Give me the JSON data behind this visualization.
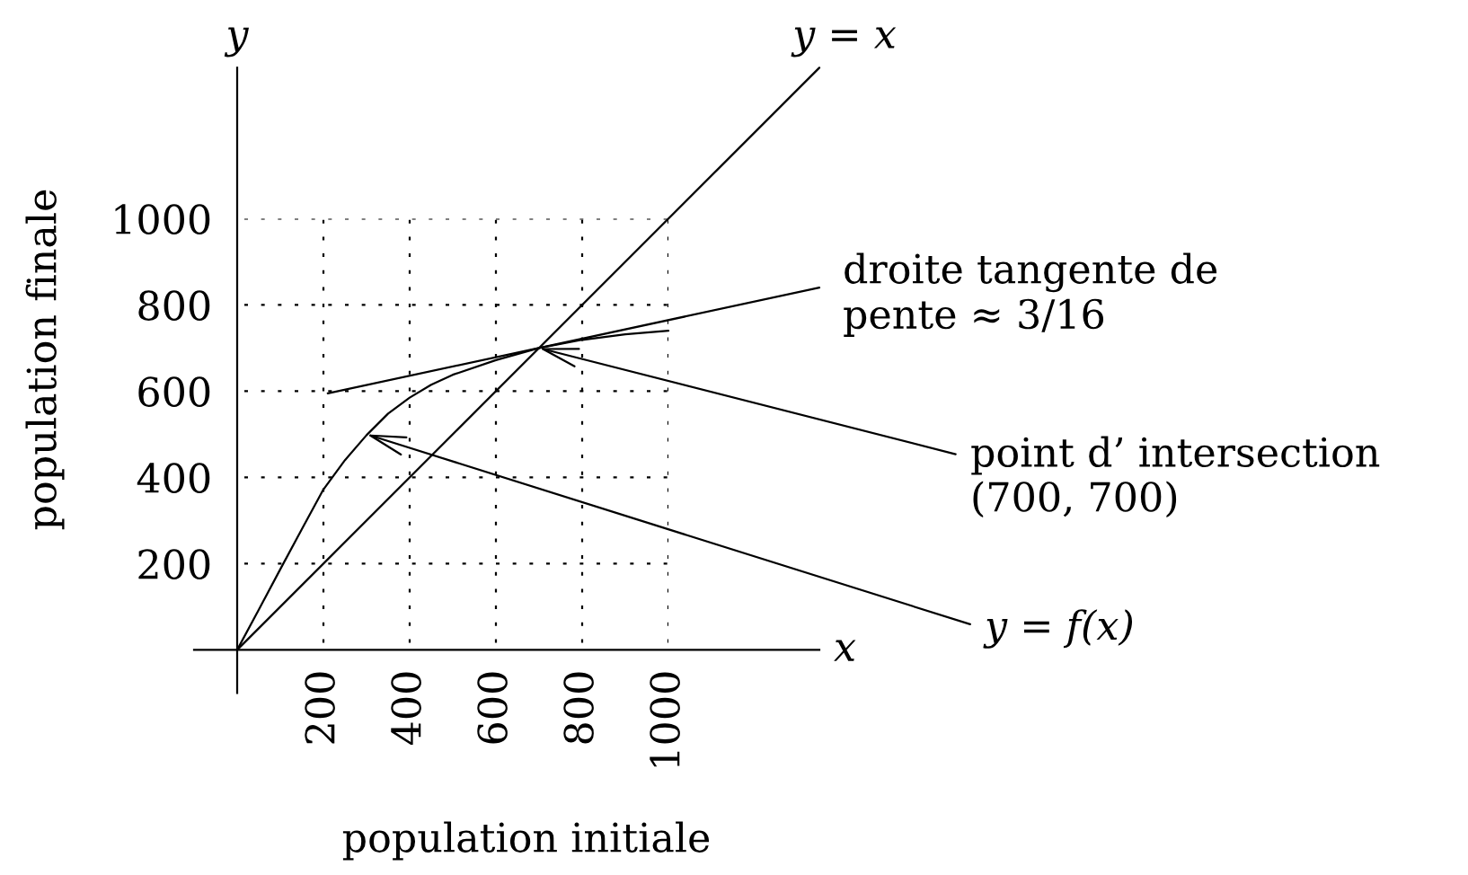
{
  "chart_data": {
    "type": "line",
    "xlabel": "population initiale",
    "ylabel": "population finale",
    "xlim": [
      -100,
      1350
    ],
    "ylim": [
      -100,
      1350
    ],
    "xticks": [
      200,
      400,
      600,
      800,
      1000
    ],
    "yticks": [
      200,
      400,
      600,
      800,
      1000
    ],
    "grid": true,
    "series": [
      {
        "name": "y = x",
        "color": "#000000",
        "x": [
          0,
          1350
        ],
        "values": [
          0,
          1350
        ]
      },
      {
        "color": "#000000",
        "x": [
          0,
          50,
          100,
          150,
          200,
          250,
          300,
          350,
          400,
          450,
          500,
          600,
          700,
          800,
          900,
          1000
        ],
        "values": [
          0,
          93,
          187,
          280,
          372,
          440,
          498,
          548,
          585,
          615,
          638,
          672,
          700,
          719,
          732,
          740
        ]
      },
      {
        "name": "droite tangente de\npente ≈ 3/16",
        "color": "#000000",
        "x": [
          210,
          1350
        ],
        "values": [
          595,
          840
        ]
      }
    ],
    "annotations": [
      "x",
      "y",
      {
        "text": "y = f(x)",
        "x": 300,
        "y": 500
      },
      {
        "text": "point d’ intersection\n(700, 700)",
        "x": 700,
        "y": 700
      }
    ]
  }
}
